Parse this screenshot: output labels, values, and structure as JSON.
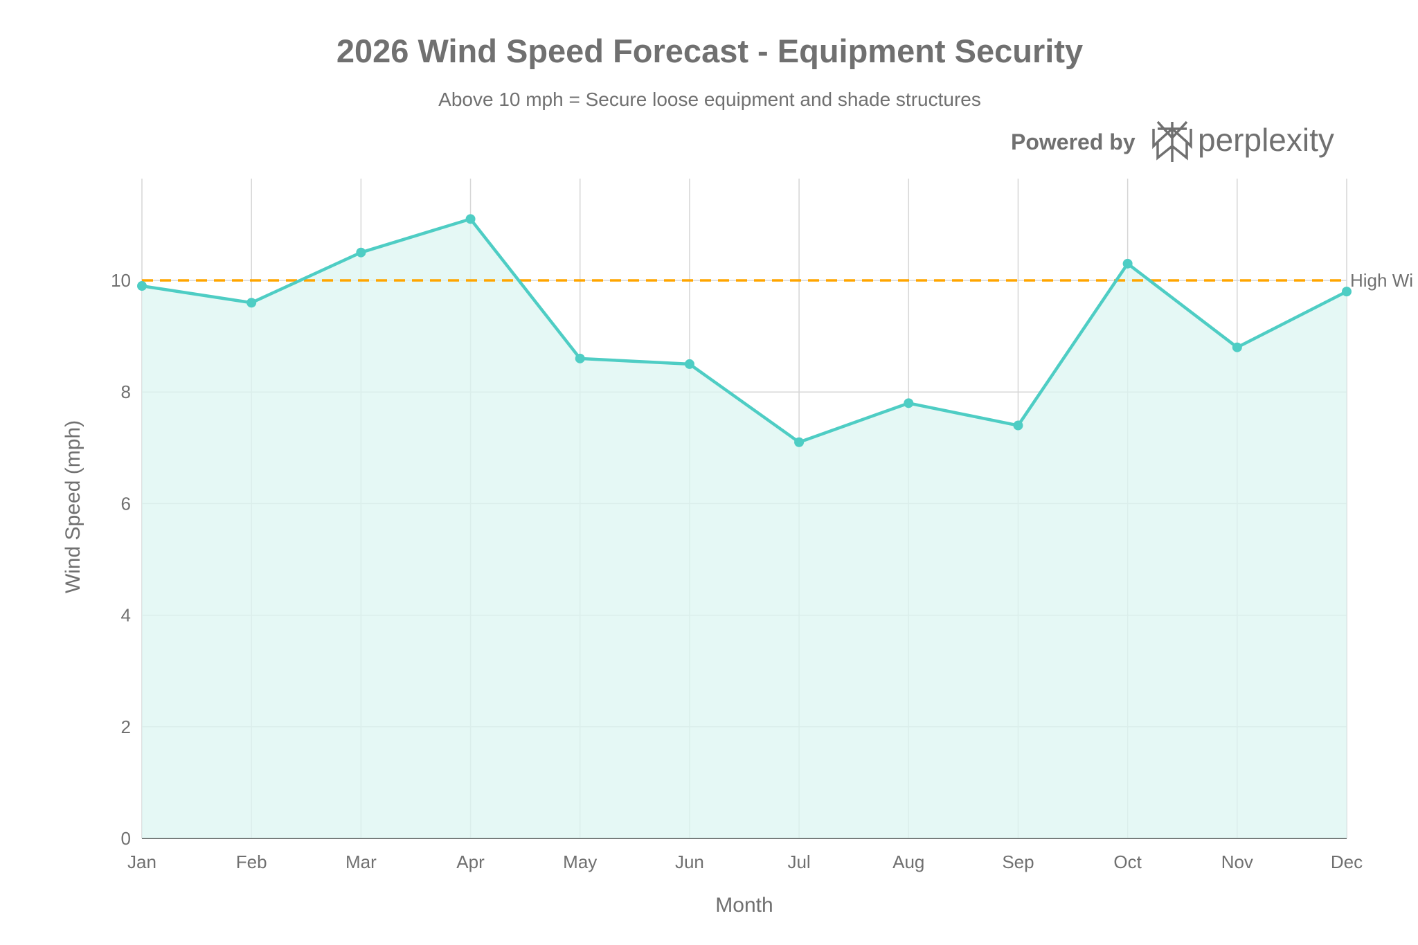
{
  "branding": {
    "powered_by": "Powered by",
    "logo_text": "perplexity"
  },
  "chart_data": {
    "type": "area",
    "title": "2026 Wind Speed Forecast - Equipment Security",
    "subtitle": "Above 10 mph = Secure loose equipment and shade structures",
    "xlabel": "Month",
    "ylabel": "Wind Speed (mph)",
    "categories": [
      "Jan",
      "Feb",
      "Mar",
      "Apr",
      "May",
      "Jun",
      "Jul",
      "Aug",
      "Sep",
      "Oct",
      "Nov",
      "Dec"
    ],
    "series": [
      {
        "name": "Wind Speed",
        "values": [
          9.9,
          9.6,
          10.5,
          11.1,
          8.6,
          8.5,
          7.1,
          7.8,
          7.4,
          10.3,
          8.8,
          9.8
        ],
        "color": "#4ecdc4",
        "fill": "#dcf5f2"
      }
    ],
    "ylim": [
      0,
      11.8
    ],
    "yticks": [
      0,
      2,
      4,
      6,
      8,
      10
    ],
    "grid": true,
    "threshold": {
      "value": 10,
      "label": "High Wi",
      "color": "#ffa500"
    }
  }
}
